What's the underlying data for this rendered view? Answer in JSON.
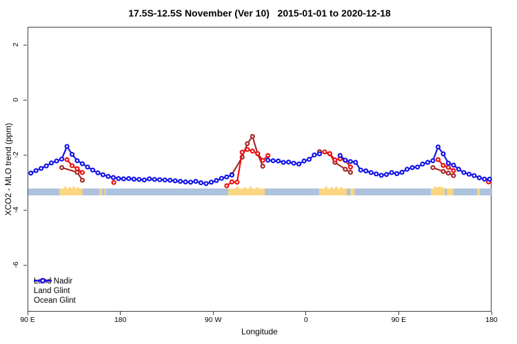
{
  "page": {
    "background": "#ffffff"
  },
  "chart_data": {
    "type": "line",
    "title": "17.5S-12.5S November (Ver 10)   2015-01-01 to 2020-12-18",
    "xlabel": "Longitude",
    "ylabel": "XCO2 - MLO trend (ppm)",
    "grid": false,
    "x_axis": {
      "range": [
        90,
        540
      ],
      "ticks": [
        {
          "value": 90,
          "label": "90 E"
        },
        {
          "value": 180,
          "label": "180"
        },
        {
          "value": 270,
          "label": "90 W"
        },
        {
          "value": 360,
          "label": "0"
        },
        {
          "value": 450,
          "label": "90 E"
        },
        {
          "value": 540,
          "label": "180"
        }
      ]
    },
    "y_axis": {
      "range": [
        -7.7,
        2.65
      ],
      "ticks": [
        {
          "value": 2,
          "label": "2"
        },
        {
          "value": 0,
          "label": "0"
        },
        {
          "value": -2,
          "label": "-2"
        },
        {
          "value": -4,
          "label": "-4"
        },
        {
          "value": -6,
          "label": "-6"
        }
      ]
    },
    "legend": {
      "position": "bottom-left",
      "items": [
        {
          "label": "Land Nadir",
          "color": "#A52A2A"
        },
        {
          "label": "Land Glint",
          "color": "#EA1212"
        },
        {
          "label": "Ocean Glint",
          "color": "#1414E8"
        }
      ]
    },
    "map_strip": {
      "ocean_color": "#ADC2DD",
      "land_color": "#FBD681",
      "value_top": -3.2,
      "value_bottom": -3.45,
      "land_patches": [
        {
          "from": 120,
          "to": 142.5,
          "jagged": true
        },
        {
          "from": 159,
          "to": 161.5,
          "jagged": false
        },
        {
          "from": 164,
          "to": 165.5,
          "jagged": false
        },
        {
          "from": 284,
          "to": 319.5,
          "jagged": true
        },
        {
          "from": 372,
          "to": 399,
          "jagged": true
        },
        {
          "from": 402.5,
          "to": 406.5,
          "jagged": false
        },
        {
          "from": 480.5,
          "to": 494,
          "jagged": true
        },
        {
          "from": 496,
          "to": 502.5,
          "jagged": false
        },
        {
          "from": 525.5,
          "to": 528,
          "jagged": false
        }
      ]
    },
    "series": [
      {
        "name": "Land Nadir",
        "color": "#A52A2A",
        "runs": [
          {
            "x": [
              122.5,
              137.5,
              142.5
            ],
            "y": [
              -2.44,
              -2.61,
              -2.9
            ]
          },
          {
            "x": [
              287.5,
              297.5,
              302.5,
              307.5,
              312.5,
              317.5
            ],
            "y": [
              -2.69,
              -2.06,
              -1.57,
              -1.31,
              -1.94,
              -2.39
            ]
          },
          {
            "x": [
              372.5,
              382.5,
              387.5,
              397.5,
              402.5
            ],
            "y": [
              -1.86,
              -1.94,
              -2.25,
              -2.5,
              -2.61
            ]
          },
          {
            "x": [
              482.5,
              492.5,
              497.5,
              502.5
            ],
            "y": [
              -2.44,
              -2.58,
              -2.64,
              -2.73
            ]
          }
        ]
      },
      {
        "name": "Land Glint",
        "color": "#EA1212",
        "runs": [
          {
            "x": [
              127.5,
              132.5,
              137.5,
              142.5
            ],
            "y": [
              -2.15,
              -2.37,
              -2.48,
              -2.62
            ]
          },
          {
            "x": [
              173
            ],
            "y": [
              -2.98
            ]
          },
          {
            "x": [
              282.5,
              287.5,
              292.5,
              297.5,
              302.5,
              307.5,
              312.5,
              317.5,
              322.5
            ],
            "y": [
              -3.1,
              -2.96,
              -2.97,
              -1.88,
              -1.78,
              -1.84,
              -1.93,
              -2.18,
              -2.0
            ]
          },
          {
            "x": [
              377.5,
              382.5,
              387.5,
              392.5,
              397.5,
              402.5
            ],
            "y": [
              -1.87,
              -1.93,
              -2.16,
              -2.12,
              -2.18,
              -2.42
            ]
          },
          {
            "x": [
              487.5,
              492.5,
              497.5,
              502.5
            ],
            "y": [
              -2.15,
              -2.36,
              -2.43,
              -2.55
            ]
          },
          {
            "x": [
              536.5
            ],
            "y": [
              -2.96
            ]
          }
        ]
      },
      {
        "name": "Ocean Glint",
        "color": "#1414E8",
        "runs": [
          {
            "x": [
              92.5,
              97.5,
              102.5,
              107.5,
              112.5,
              117.5,
              122.5,
              127.5,
              132.5,
              137.5,
              142.5,
              147.5,
              152.5,
              157.5,
              162.5,
              167.5,
              172.5,
              177.5,
              182.5,
              187.5,
              192.5,
              197.5,
              202.5,
              207.5,
              212.5,
              217.5,
              222.5,
              227.5,
              232.5,
              237.5,
              242.5,
              247.5,
              252.5,
              257.5,
              262.5,
              267.5,
              272.5,
              277.5,
              282.5,
              287.5
            ],
            "y": [
              -2.64,
              -2.55,
              -2.47,
              -2.38,
              -2.27,
              -2.2,
              -2.13,
              -1.67,
              -1.96,
              -2.19,
              -2.3,
              -2.42,
              -2.53,
              -2.63,
              -2.7,
              -2.76,
              -2.8,
              -2.84,
              -2.85,
              -2.84,
              -2.86,
              -2.87,
              -2.89,
              -2.85,
              -2.87,
              -2.88,
              -2.89,
              -2.9,
              -2.92,
              -2.94,
              -2.96,
              -2.97,
              -2.94,
              -2.99,
              -3.02,
              -2.97,
              -2.91,
              -2.83,
              -2.78,
              -2.71
            ]
          },
          {
            "x": [
              322.5,
              327.5,
              332.5,
              337.5,
              342.5,
              347.5,
              352.5,
              357.5,
              362.5,
              367.5,
              372.5
            ],
            "y": [
              -2.17,
              -2.19,
              -2.2,
              -2.25,
              -2.24,
              -2.28,
              -2.31,
              -2.2,
              -2.14,
              -1.98,
              -1.94
            ]
          },
          {
            "x": [
              392.5,
              397.5,
              402.5,
              407.5,
              412.5,
              417.5,
              422.5,
              427.5,
              432.5,
              437.5,
              442.5,
              447.5,
              452.5,
              457.5,
              462.5,
              467.5,
              472.5,
              477.5,
              482.5,
              487.5,
              492.5,
              497.5,
              502.5,
              507.5,
              512.5,
              517.5,
              522.5,
              527.5,
              532.5,
              537.5
            ],
            "y": [
              -2.0,
              -2.17,
              -2.22,
              -2.25,
              -2.53,
              -2.56,
              -2.62,
              -2.67,
              -2.72,
              -2.69,
              -2.62,
              -2.66,
              -2.61,
              -2.5,
              -2.44,
              -2.42,
              -2.31,
              -2.25,
              -2.19,
              -1.69,
              -1.94,
              -2.28,
              -2.35,
              -2.5,
              -2.62,
              -2.68,
              -2.73,
              -2.81,
              -2.86,
              -2.86
            ]
          }
        ]
      }
    ]
  }
}
